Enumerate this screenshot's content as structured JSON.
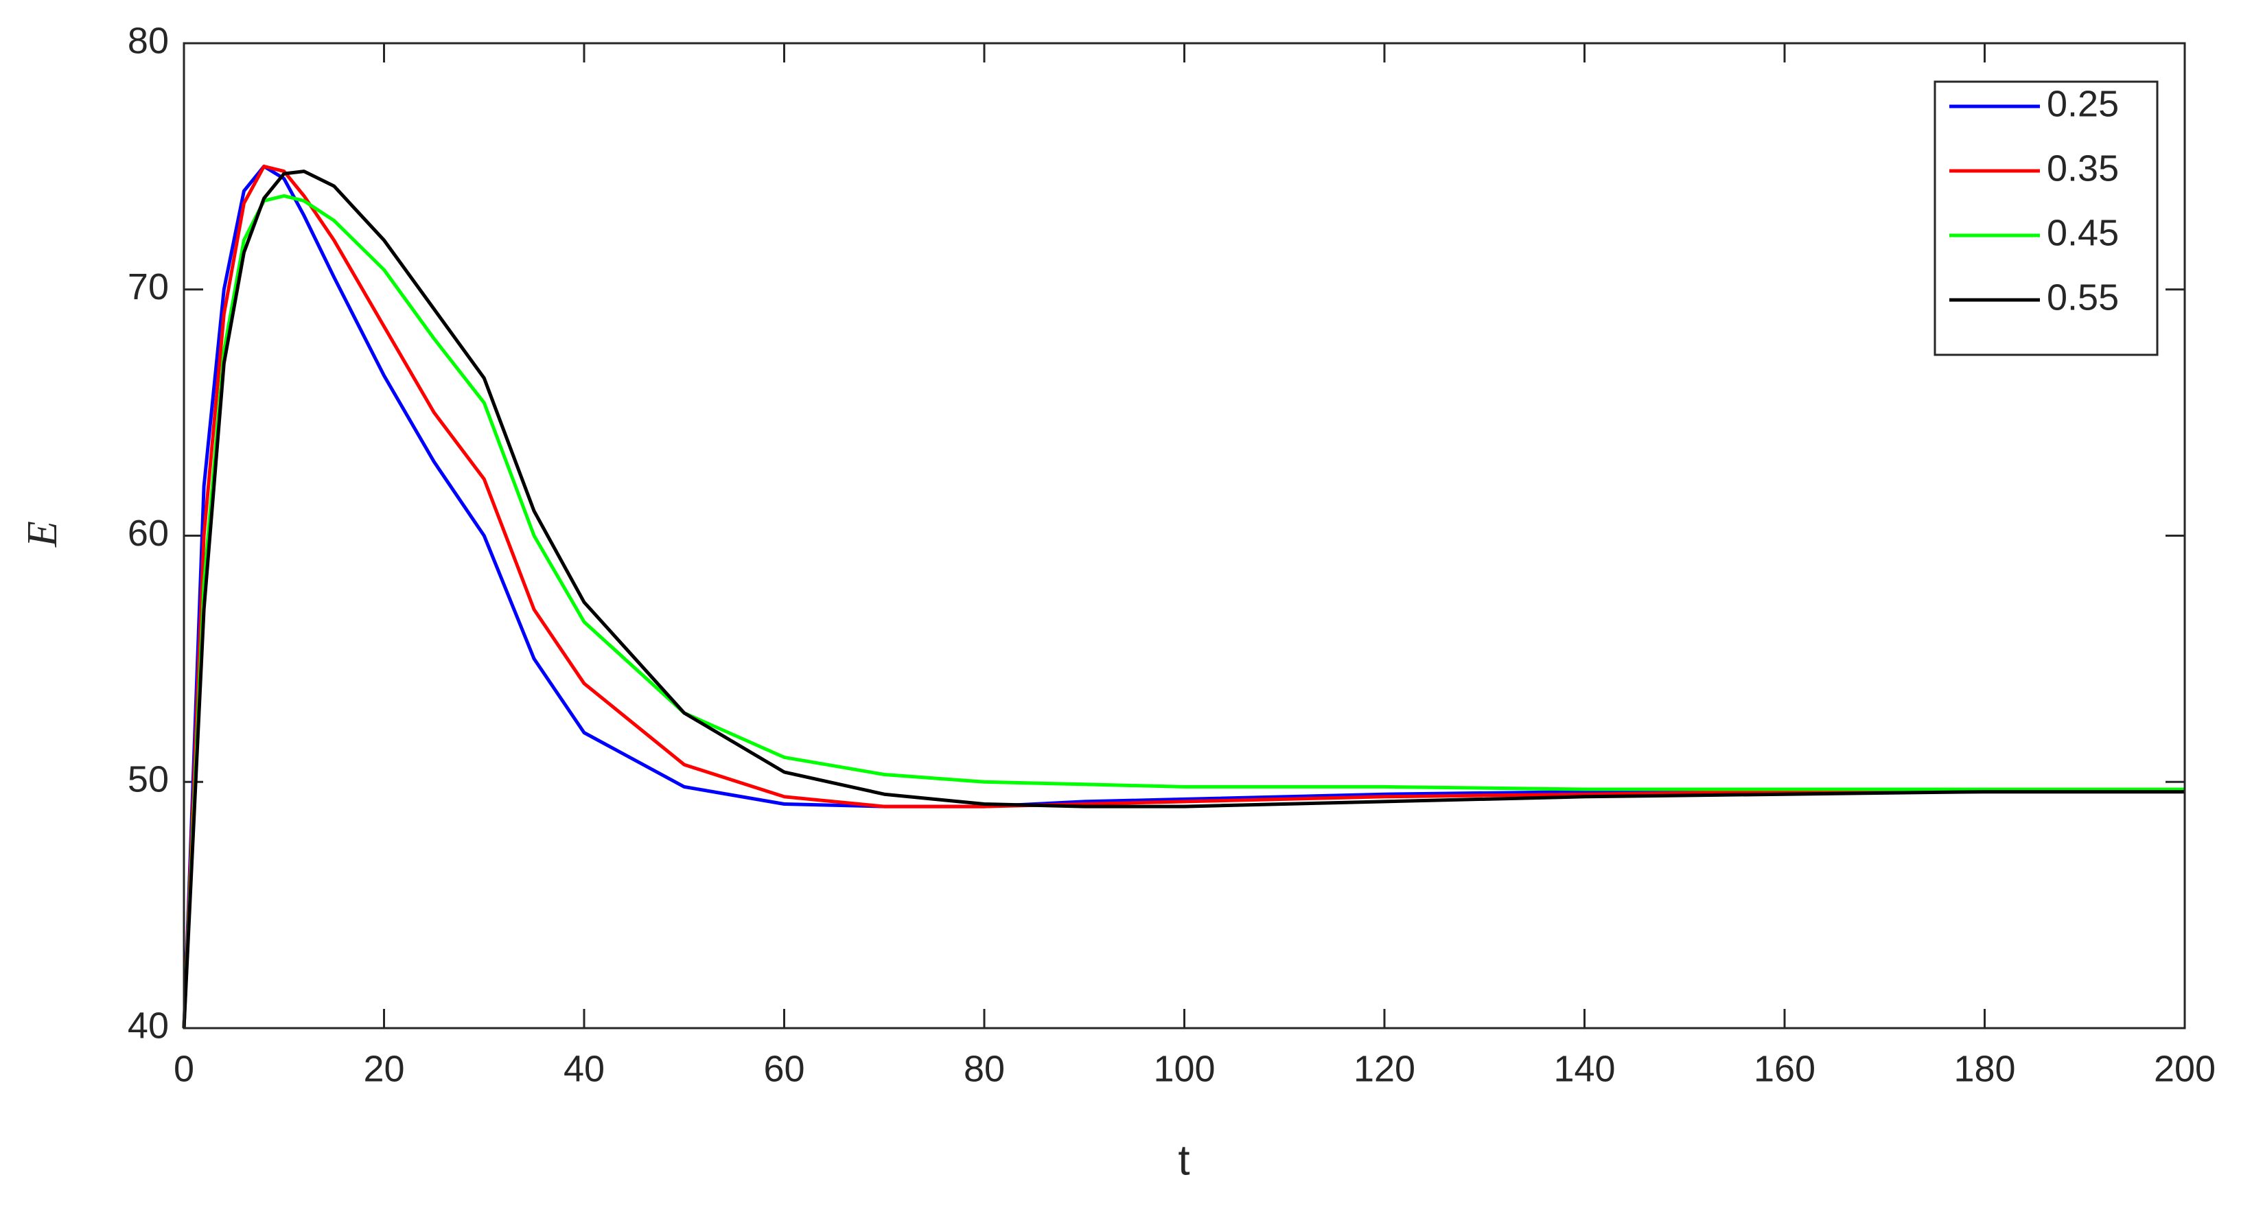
{
  "chart_data": {
    "type": "line",
    "x_label": "t",
    "y_label": "E",
    "x": [
      0,
      2,
      4,
      6,
      8,
      10,
      12,
      15,
      20,
      25,
      30,
      35,
      40,
      50,
      60,
      70,
      80,
      90,
      100,
      120,
      140,
      160,
      180,
      200
    ],
    "series": [
      {
        "name": "0.25",
        "color": "#0000ff",
        "values": [
          40,
          62,
          70,
          74,
          75,
          74.5,
          73,
          70.5,
          66.5,
          63,
          60,
          55,
          52,
          49.8,
          49.1,
          49,
          49,
          49.2,
          49.3,
          49.5,
          49.6,
          49.6,
          49.6,
          49.6
        ]
      },
      {
        "name": "0.35",
        "color": "#ff0000",
        "values": [
          40,
          60,
          69,
          73.5,
          75,
          74.8,
          73.8,
          72,
          68.5,
          65,
          62.3,
          57,
          54,
          50.7,
          49.4,
          49,
          49,
          49.1,
          49.2,
          49.4,
          49.5,
          49.6,
          49.6,
          49.6
        ]
      },
      {
        "name": "0.45",
        "color": "#00ff00",
        "values": [
          40,
          58,
          67.5,
          72,
          73.6,
          73.8,
          73.6,
          72.8,
          70.8,
          68,
          65.4,
          60,
          56.5,
          52.8,
          51,
          50.3,
          50,
          49.9,
          49.8,
          49.8,
          49.7,
          49.7,
          49.7,
          49.7
        ]
      },
      {
        "name": "0.55",
        "color": "#000000",
        "values": [
          40,
          57,
          67,
          71.5,
          73.7,
          74.7,
          74.8,
          74.2,
          72,
          69.2,
          66.4,
          61,
          57.3,
          52.8,
          50.4,
          49.5,
          49.1,
          49,
          49,
          49.2,
          49.4,
          49.5,
          49.6,
          49.6
        ]
      }
    ],
    "xlim": [
      0,
      200
    ],
    "xticks": [
      0,
      20,
      40,
      60,
      80,
      100,
      120,
      140,
      160,
      180,
      200
    ],
    "ylim": [
      40,
      80
    ],
    "yticks": [
      40,
      50,
      60,
      70,
      80
    ],
    "legend": "top-right"
  }
}
